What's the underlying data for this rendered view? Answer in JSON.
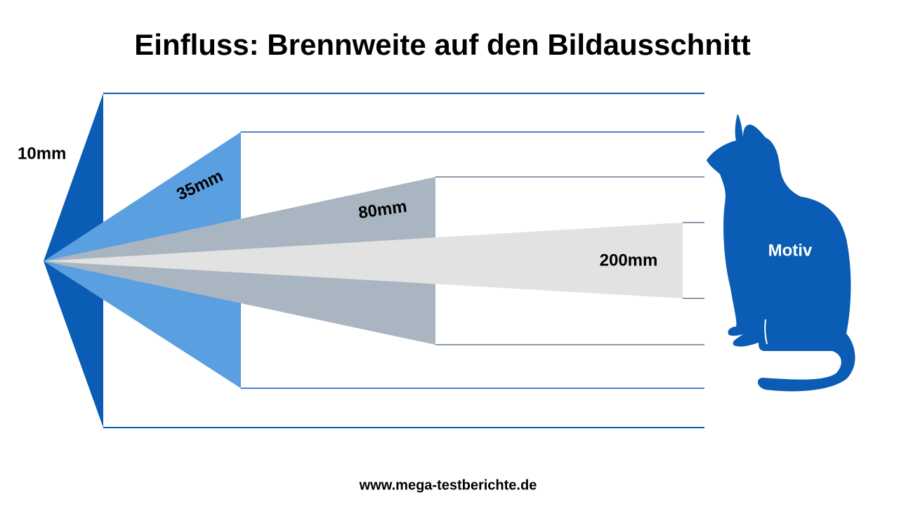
{
  "title": "Einfluss: Brennweite auf den Bildausschnitt",
  "focal_lengths": [
    {
      "label": "10mm"
    },
    {
      "label": "35mm"
    },
    {
      "label": "80mm"
    },
    {
      "label": "200mm"
    }
  ],
  "subject": {
    "label": "Motiv"
  },
  "footer": "www.mega-testberichte.de"
}
